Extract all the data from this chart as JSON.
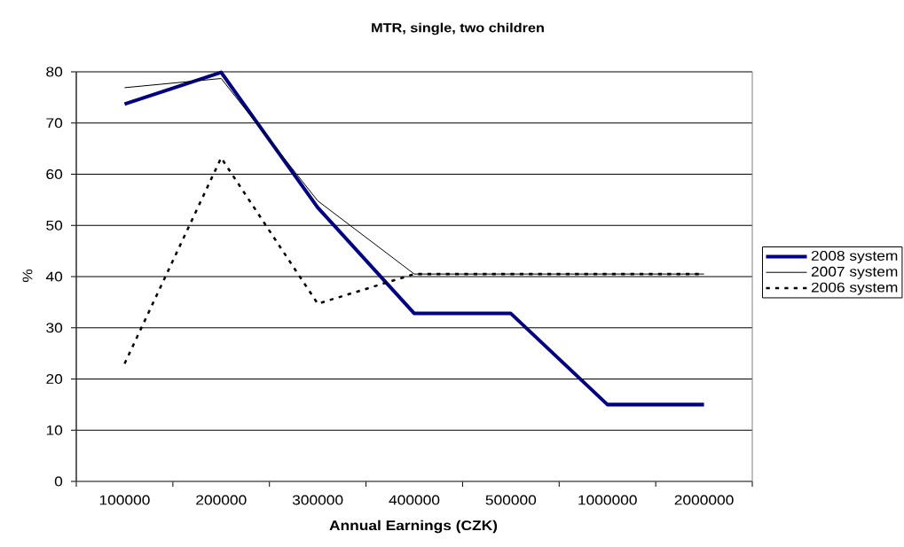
{
  "chart_data": {
    "type": "line",
    "title": "MTR, single, two children",
    "xlabel": "Annual Earnings (CZK)",
    "ylabel": "%",
    "categories": [
      "100000",
      "200000",
      "300000",
      "400000",
      "500000",
      "1000000",
      "2000000"
    ],
    "series": [
      {
        "name": "2008 system",
        "color": "#000080",
        "values": [
          73.7,
          79.9,
          53.5,
          32.8,
          32.8,
          15,
          15
        ]
      },
      {
        "name": "2007 system",
        "color": "#000000",
        "values": [
          76.9,
          78.7,
          54.8,
          40.5,
          40.5,
          40.5,
          40.5
        ]
      },
      {
        "name": "2006 system",
        "color": "#000000",
        "line_style": "dashed",
        "values": [
          23,
          63.2,
          34.7,
          40.5,
          40.5,
          40.5,
          40.5
        ]
      }
    ],
    "ylim": [
      0,
      80
    ],
    "yticks": [
      0,
      10,
      20,
      30,
      40,
      50,
      60,
      70,
      80
    ],
    "grid": "y",
    "legend": "right"
  }
}
